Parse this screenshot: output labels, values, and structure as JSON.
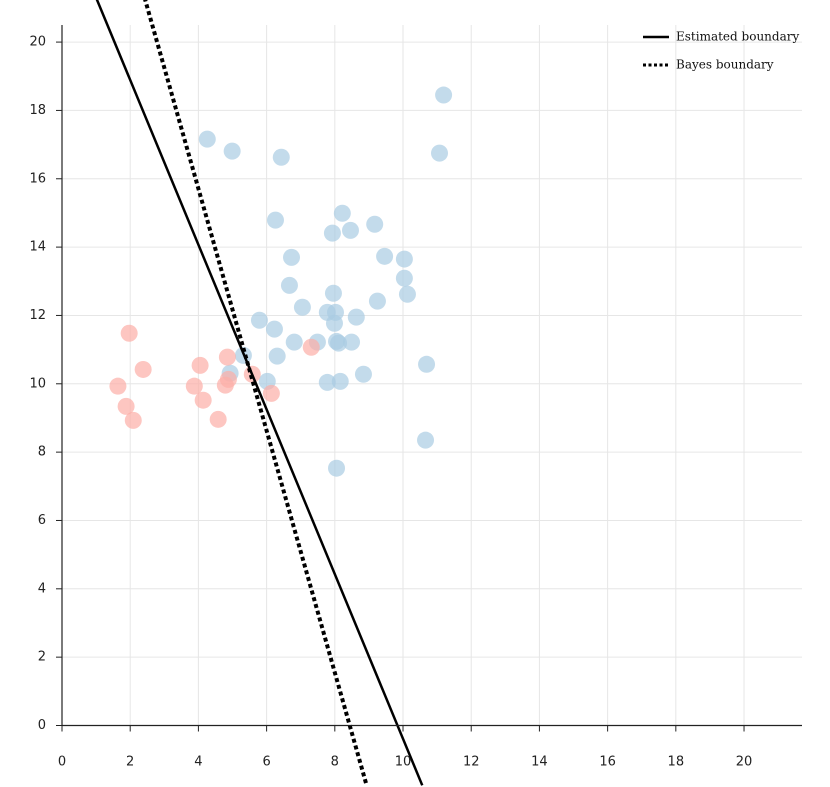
{
  "chart_data": {
    "type": "scatter",
    "title": "",
    "xlabel": "",
    "ylabel": "",
    "xlim": [
      0,
      21.7
    ],
    "ylim": [
      -1.8,
      20.5
    ],
    "grid": true,
    "legend_position": "top-right",
    "x_ticks": [
      "0",
      "2",
      "4",
      "6",
      "8",
      "10",
      "12",
      "14",
      "16",
      "18",
      "20"
    ],
    "y_ticks": [
      "0",
      "2",
      "4",
      "6",
      "8",
      "10",
      "12",
      "14",
      "16",
      "18",
      "20"
    ],
    "series": [
      {
        "color": "#a9cce3",
        "points": [
          [
            4.26,
            17.16
          ],
          [
            4.99,
            16.81
          ],
          [
            6.43,
            16.63
          ],
          [
            11.19,
            18.45
          ],
          [
            11.07,
            16.75
          ],
          [
            6.26,
            14.79
          ],
          [
            8.22,
            14.99
          ],
          [
            7.93,
            14.41
          ],
          [
            8.46,
            14.49
          ],
          [
            9.17,
            14.67
          ],
          [
            6.73,
            13.7
          ],
          [
            9.46,
            13.73
          ],
          [
            10.04,
            13.65
          ],
          [
            10.04,
            13.09
          ],
          [
            6.67,
            12.88
          ],
          [
            7.96,
            12.65
          ],
          [
            9.25,
            12.42
          ],
          [
            10.13,
            12.62
          ],
          [
            7.05,
            12.24
          ],
          [
            7.78,
            12.09
          ],
          [
            8.02,
            12.09
          ],
          [
            7.99,
            11.77
          ],
          [
            8.63,
            11.95
          ],
          [
            5.79,
            11.86
          ],
          [
            6.23,
            11.6
          ],
          [
            6.81,
            11.22
          ],
          [
            7.49,
            11.22
          ],
          [
            8.05,
            11.24
          ],
          [
            8.11,
            11.19
          ],
          [
            8.49,
            11.22
          ],
          [
            5.32,
            10.83
          ],
          [
            6.31,
            10.81
          ],
          [
            10.69,
            10.57
          ],
          [
            4.93,
            10.31
          ],
          [
            6.02,
            10.07
          ],
          [
            7.78,
            10.04
          ],
          [
            8.16,
            10.07
          ],
          [
            8.84,
            10.28
          ],
          [
            10.66,
            8.35
          ],
          [
            8.05,
            7.53
          ]
        ]
      },
      {
        "color": "#fcaea6",
        "points": [
          [
            1.97,
            11.48
          ],
          [
            2.38,
            10.42
          ],
          [
            1.64,
            9.93
          ],
          [
            1.88,
            9.34
          ],
          [
            2.09,
            8.93
          ],
          [
            4.05,
            10.54
          ],
          [
            3.88,
            9.93
          ],
          [
            4.14,
            9.52
          ],
          [
            4.58,
            8.96
          ],
          [
            4.85,
            10.78
          ],
          [
            4.79,
            9.96
          ],
          [
            4.88,
            10.13
          ],
          [
            5.58,
            10.28
          ],
          [
            6.14,
            9.72
          ],
          [
            7.31,
            11.07
          ]
        ]
      }
    ],
    "lines": [
      {
        "name": "Estimated boundary",
        "style": "solid",
        "slope": -2.41,
        "intercept": 23.71
      },
      {
        "name": "Bayes boundary",
        "style": "dotted",
        "slope": -3.54,
        "intercept": 29.87
      }
    ]
  }
}
